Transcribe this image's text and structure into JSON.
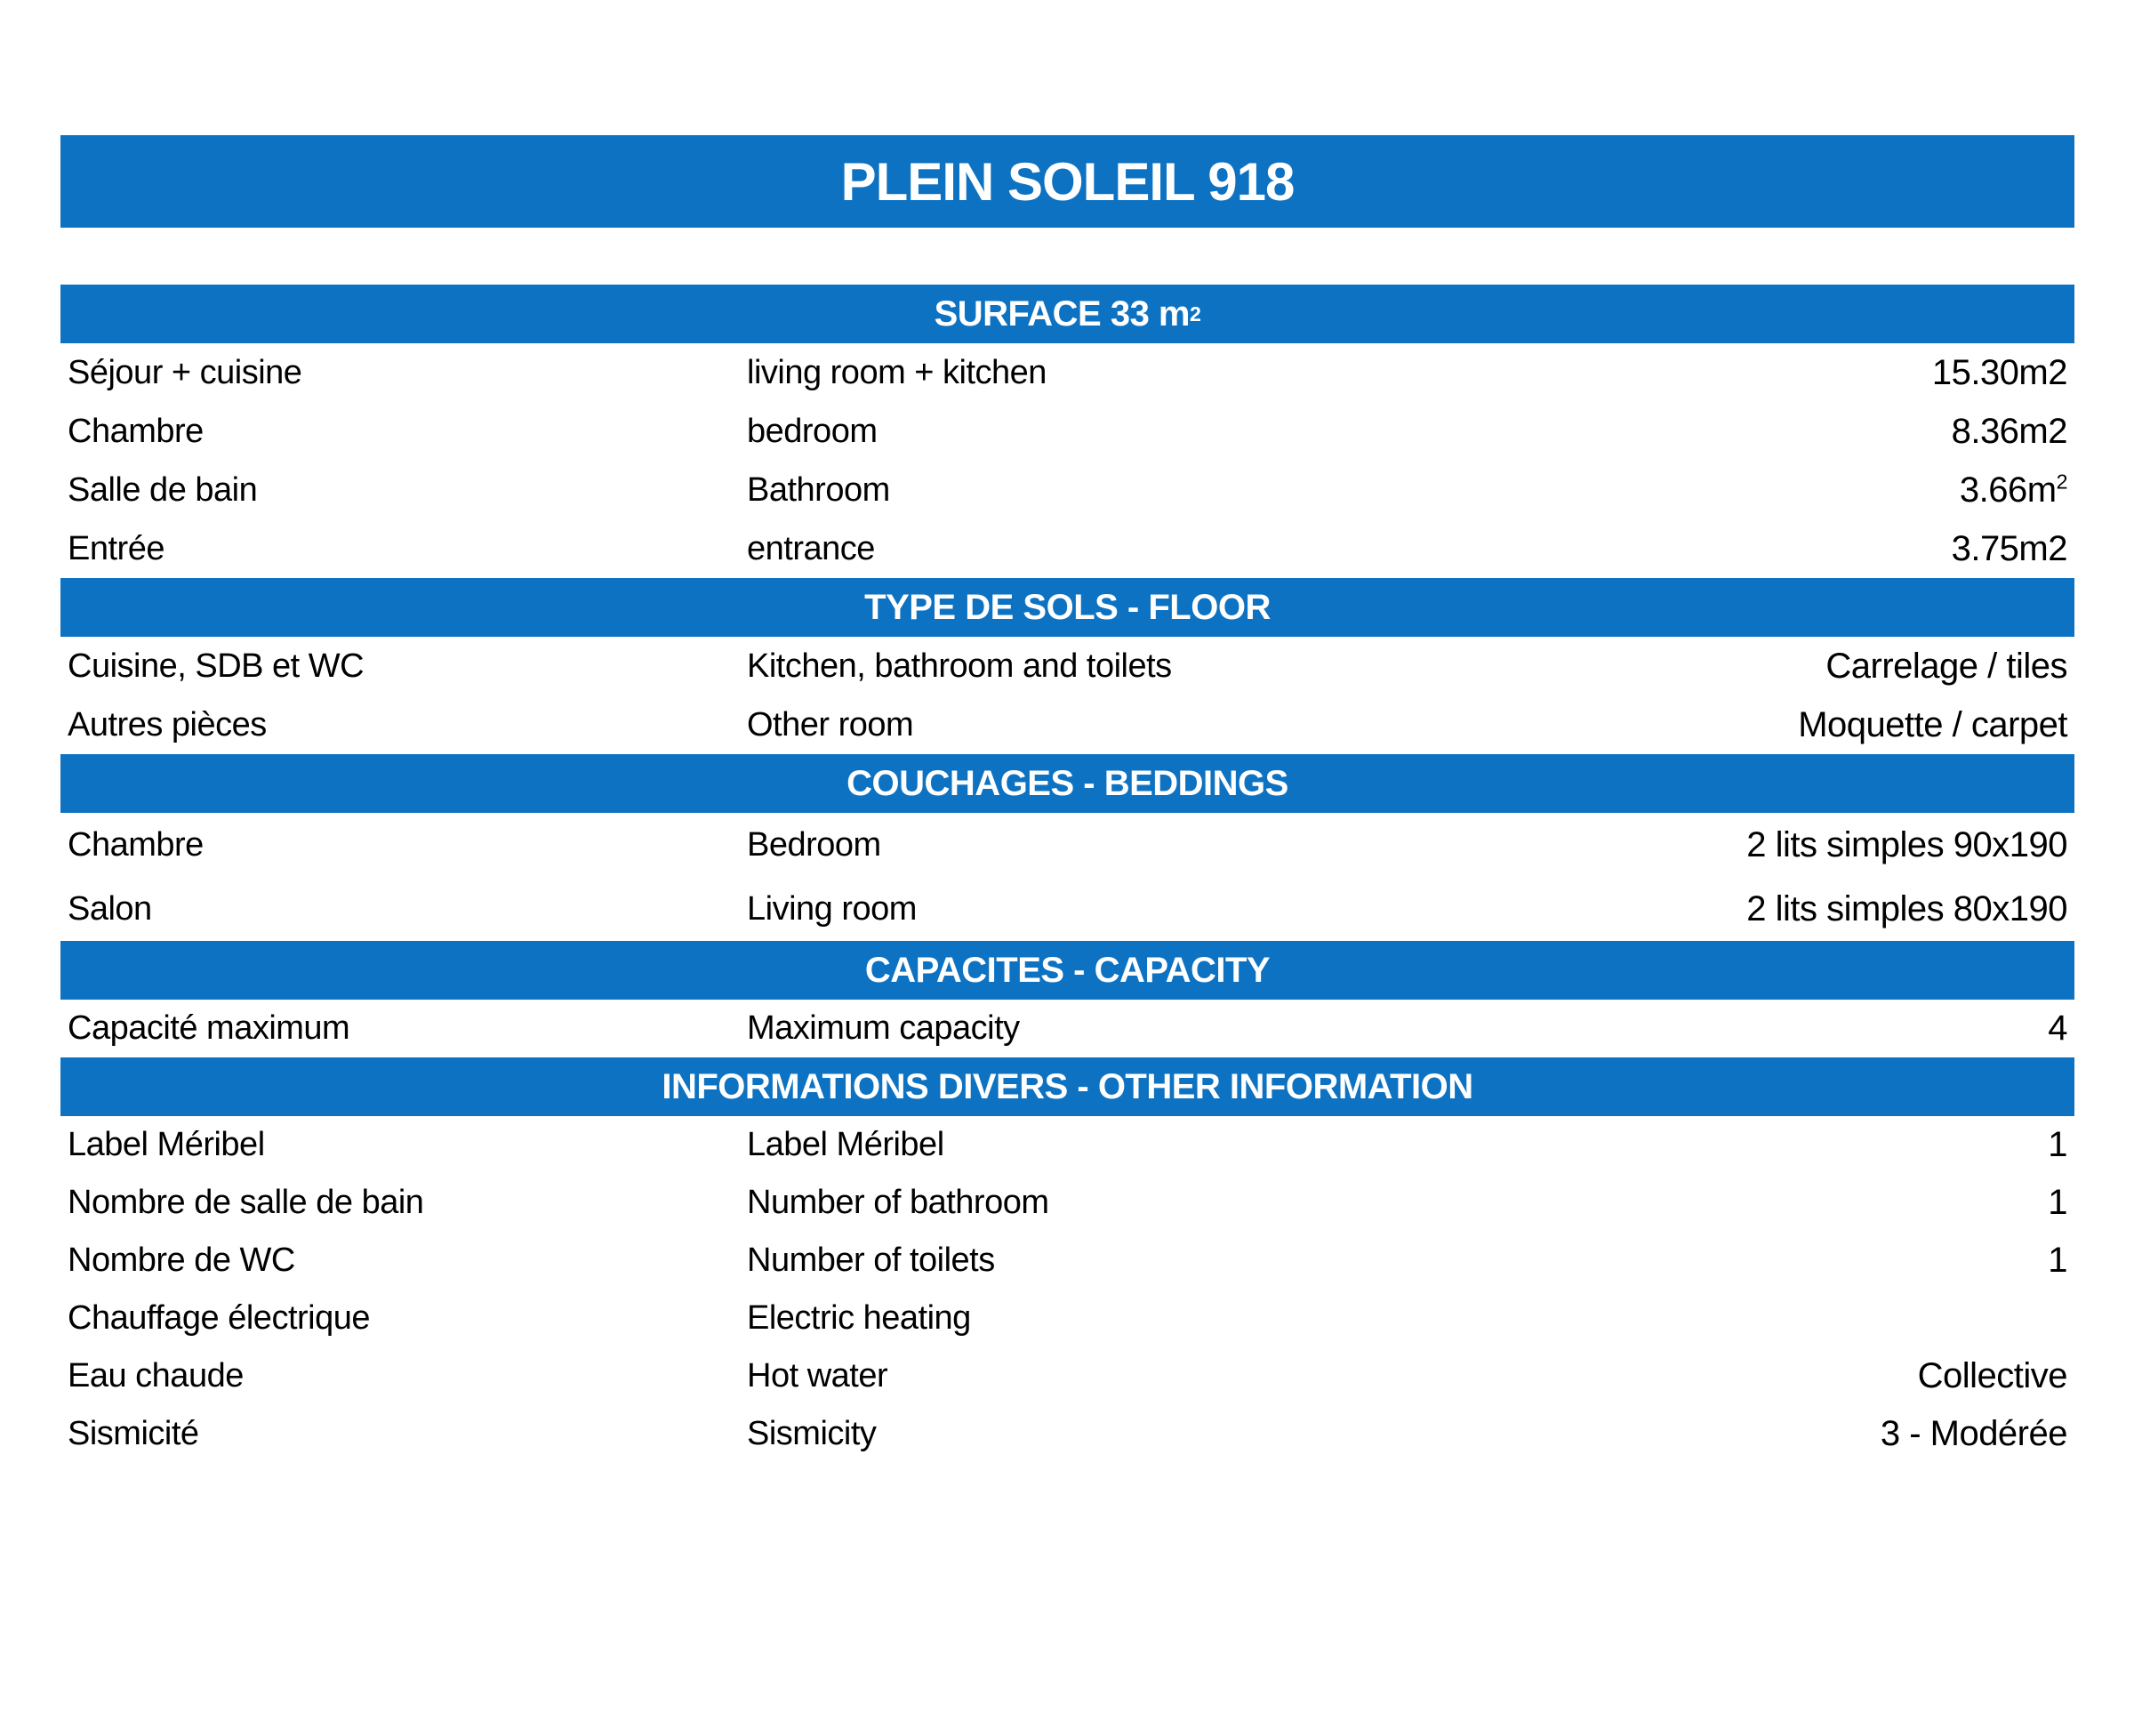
{
  "title": "PLEIN SOLEIL 918",
  "accent_color": "#0d72c2",
  "sections": [
    {
      "header": "SURFACE 33 m",
      "header_sup": "2",
      "rows": [
        {
          "fr": "Séjour + cuisine",
          "en": "living room + kitchen",
          "value": "15.30m2"
        },
        {
          "fr": "Chambre",
          "en": "bedroom",
          "value": "8.36m2"
        },
        {
          "fr": "Salle de bain",
          "en": "Bathroom",
          "value": "3.66m",
          "value_sup": "2"
        },
        {
          "fr": "Entrée",
          "en": "entrance",
          "value": "3.75m2"
        }
      ]
    },
    {
      "header": "TYPE DE SOLS - FLOOR",
      "rows": [
        {
          "fr": "Cuisine, SDB et WC",
          "en": "Kitchen, bathroom and toilets",
          "value": "Carrelage / tiles"
        },
        {
          "fr": "Autres pièces",
          "en": "Other room",
          "value": "Moquette / carpet"
        }
      ]
    },
    {
      "header": "COUCHAGES - BEDDINGS",
      "rows": [
        {
          "fr": "Chambre",
          "en": "Bedroom",
          "value": "2 lits simples 90x190"
        },
        {
          "fr": "Salon",
          "en": "Living room",
          "value": "2 lits simples 80x190"
        }
      ]
    },
    {
      "header": "CAPACITES - CAPACITY",
      "rows": [
        {
          "fr": "Capacité maximum",
          "en": "Maximum capacity",
          "value": "4"
        }
      ]
    },
    {
      "header": "INFORMATIONS DIVERS - OTHER INFORMATION",
      "rows": [
        {
          "fr": "Label Méribel",
          "en": "Label Méribel",
          "value": "1"
        },
        {
          "fr": "Nombre de salle de bain",
          "en": "Number of bathroom",
          "value": "1"
        },
        {
          "fr": "Nombre de WC",
          "en": "Number of toilets",
          "value": "1"
        },
        {
          "fr": "Chauffage électrique",
          "en": "Electric heating",
          "value": ""
        },
        {
          "fr": "Eau chaude",
          "en": "Hot water",
          "value": "Collective"
        },
        {
          "fr": "Sismicité",
          "en": "Sismicity",
          "value": "3 - Modérée"
        }
      ]
    }
  ]
}
